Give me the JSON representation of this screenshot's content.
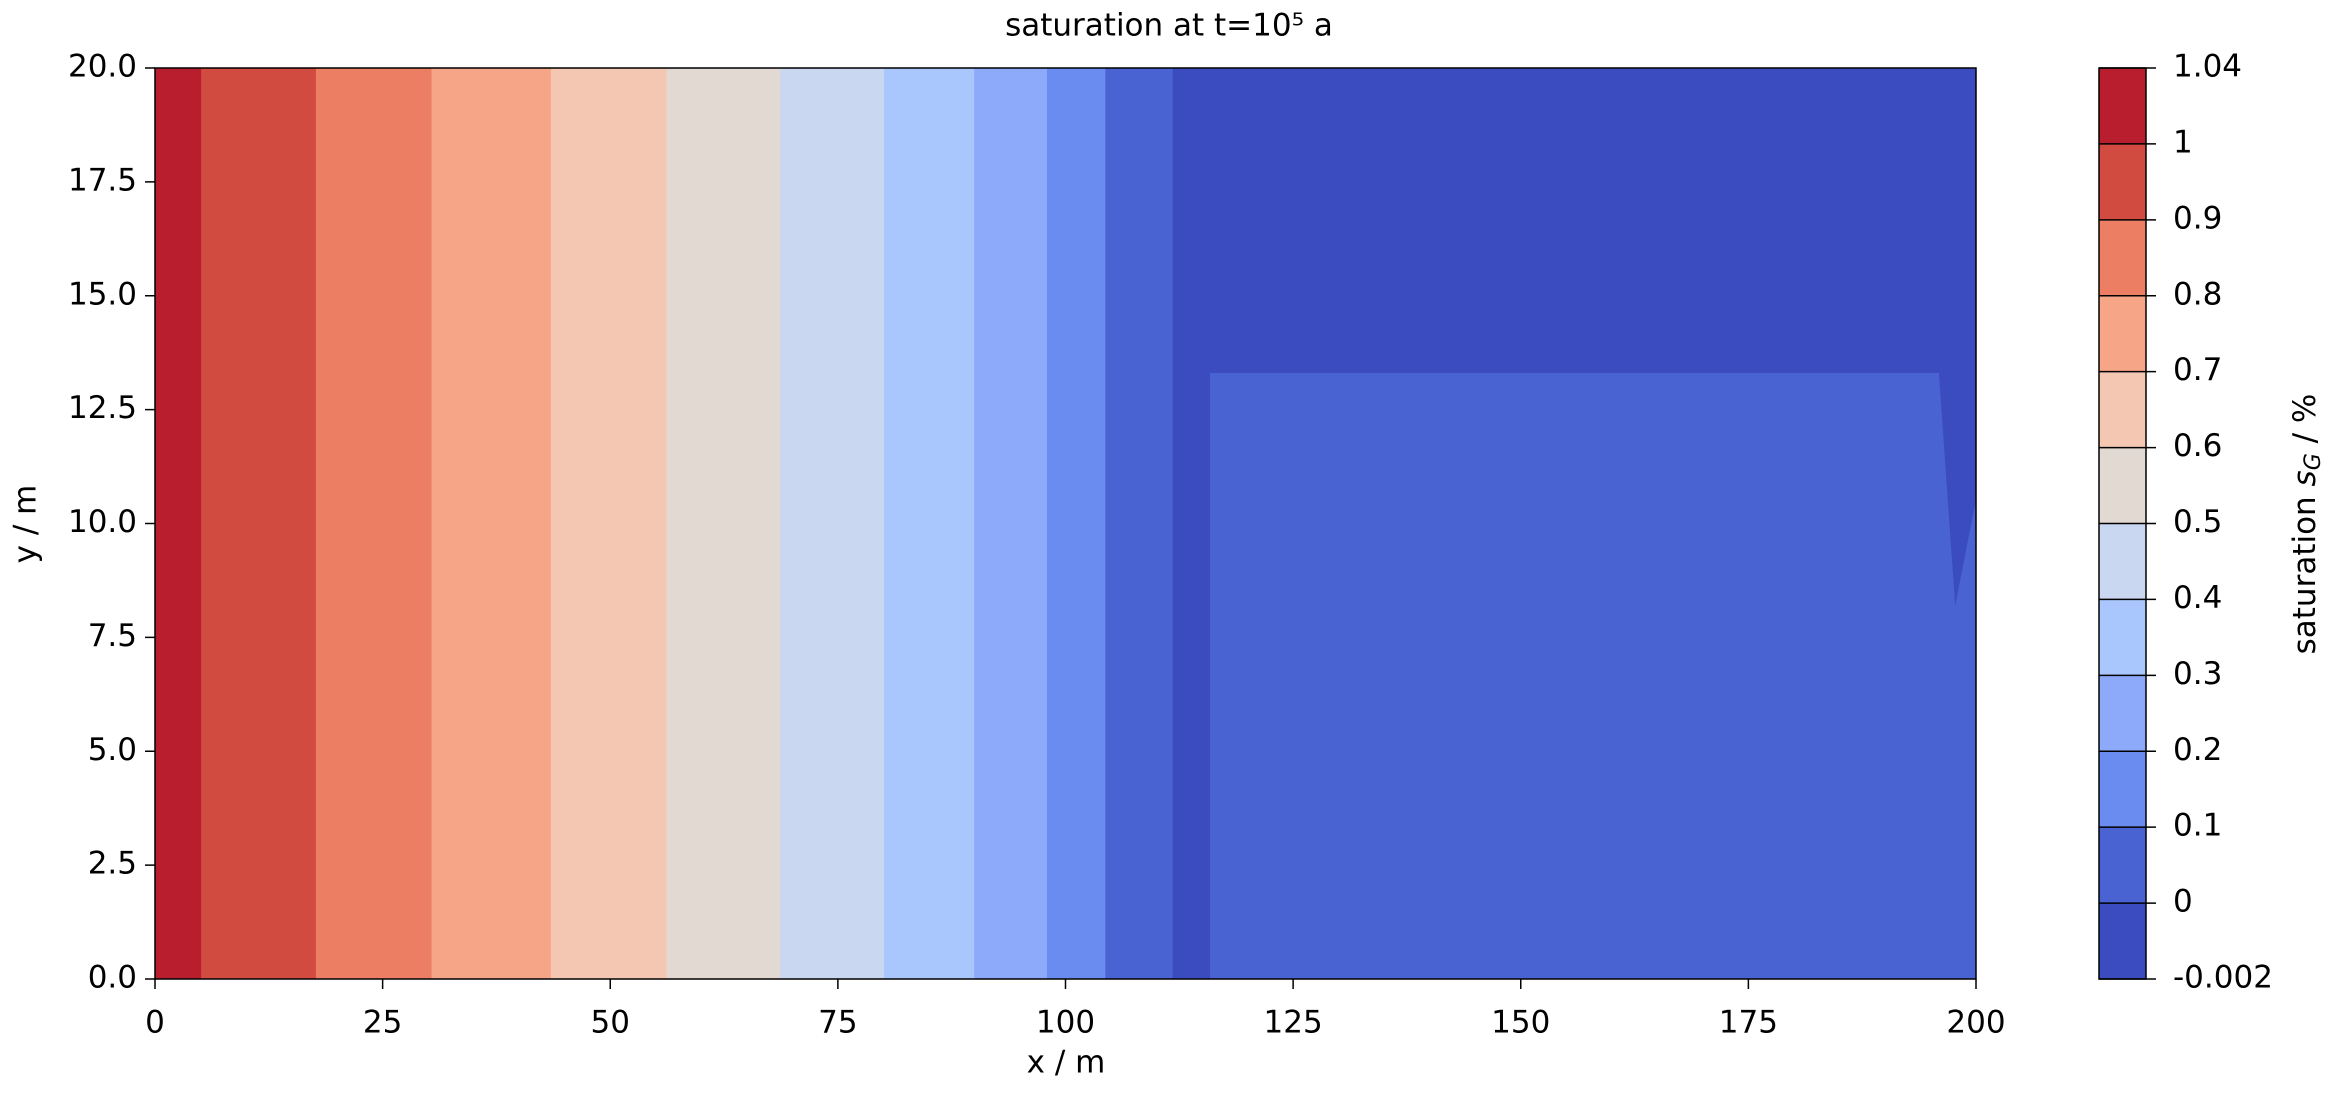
{
  "chart_data": {
    "type": "contourf",
    "title": "saturation at t=10⁵ a",
    "x_label": "x / m",
    "y_label": "y / m",
    "colorbar_label_parts": [
      "saturation ",
      "s",
      "G",
      " / %"
    ],
    "xlim": [
      0,
      200
    ],
    "ylim": [
      0,
      20
    ],
    "xticks": [
      0,
      25,
      50,
      75,
      100,
      125,
      150,
      175,
      200
    ],
    "yticks": [
      {
        "value": 0,
        "label": "0.0"
      },
      {
        "value": 2.5,
        "label": "2.5"
      },
      {
        "value": 5,
        "label": "5.0"
      },
      {
        "value": 7.5,
        "label": "7.5"
      },
      {
        "value": 10,
        "label": "10.0"
      },
      {
        "value": 12.5,
        "label": "12.5"
      },
      {
        "value": 15,
        "label": "15.0"
      },
      {
        "value": 17.5,
        "label": "17.5"
      },
      {
        "value": 20,
        "label": "20.0"
      }
    ],
    "levels": [
      -0.002,
      0,
      0.1,
      0.2,
      0.3,
      0.4,
      0.5,
      0.6,
      0.7,
      0.8,
      0.9,
      1,
      1.04
    ],
    "level_colors": [
      "#3b4cc0",
      "#4a63d3",
      "#6a8bef",
      "#8caaf9",
      "#aac7fd",
      "#c9d7f0",
      "#e3d9d3",
      "#f3c7b1",
      "#f6a586",
      "#ec7f63",
      "#d24b40",
      "#b91e2e"
    ],
    "regions": [
      {
        "level": 1,
        "x": [
          0,
          5.1,
          5.1,
          0
        ],
        "y": [
          0,
          0,
          20,
          20
        ]
      },
      {
        "level": 0.9,
        "x": [
          5.1,
          17.7,
          17.7,
          5.1
        ],
        "y": [
          0,
          0,
          20,
          20
        ]
      },
      {
        "level": 0.8,
        "x": [
          17.7,
          30.4,
          30.4,
          17.7
        ],
        "y": [
          0,
          0,
          20,
          20
        ]
      },
      {
        "level": 0.7,
        "x": [
          30.4,
          43.5,
          43.5,
          30.4
        ],
        "y": [
          0,
          0,
          20,
          20
        ]
      },
      {
        "level": 0.6,
        "x": [
          43.5,
          56.2,
          56.2,
          43.5
        ],
        "y": [
          0,
          0,
          20,
          20
        ]
      },
      {
        "level": 0.5,
        "x": [
          56.2,
          68.7,
          68.7,
          56.2
        ],
        "y": [
          0,
          0,
          20,
          20
        ]
      },
      {
        "level": 0.4,
        "x": [
          68.7,
          80.1,
          80.1,
          68.7
        ],
        "y": [
          0,
          0,
          20,
          20
        ]
      },
      {
        "level": 0.3,
        "x": [
          80.1,
          90,
          90,
          80.1
        ],
        "y": [
          0,
          0,
          20,
          20
        ]
      },
      {
        "level": 0.2,
        "x": [
          90,
          98,
          98,
          90
        ],
        "y": [
          0,
          0,
          20,
          20
        ]
      },
      {
        "level": 0.1,
        "x": [
          98,
          104.4,
          104.4,
          98
        ],
        "y": [
          0,
          0,
          20,
          20
        ]
      },
      {
        "level": 0,
        "x": [
          104.4,
          111.8,
          111.8,
          104.4
        ],
        "y": [
          0,
          0,
          20,
          20
        ]
      },
      {
        "level": -0.002,
        "x": [
          111.8,
          200,
          200,
          111.8
        ],
        "y": [
          0,
          0,
          20,
          20
        ]
      },
      {
        "level": 0,
        "x": [
          115.9,
          195.9,
          197.7,
          200,
          200,
          115.9
        ],
        "y": [
          13.3,
          13.3,
          8.15,
          10.5,
          0,
          0
        ]
      }
    ]
  }
}
